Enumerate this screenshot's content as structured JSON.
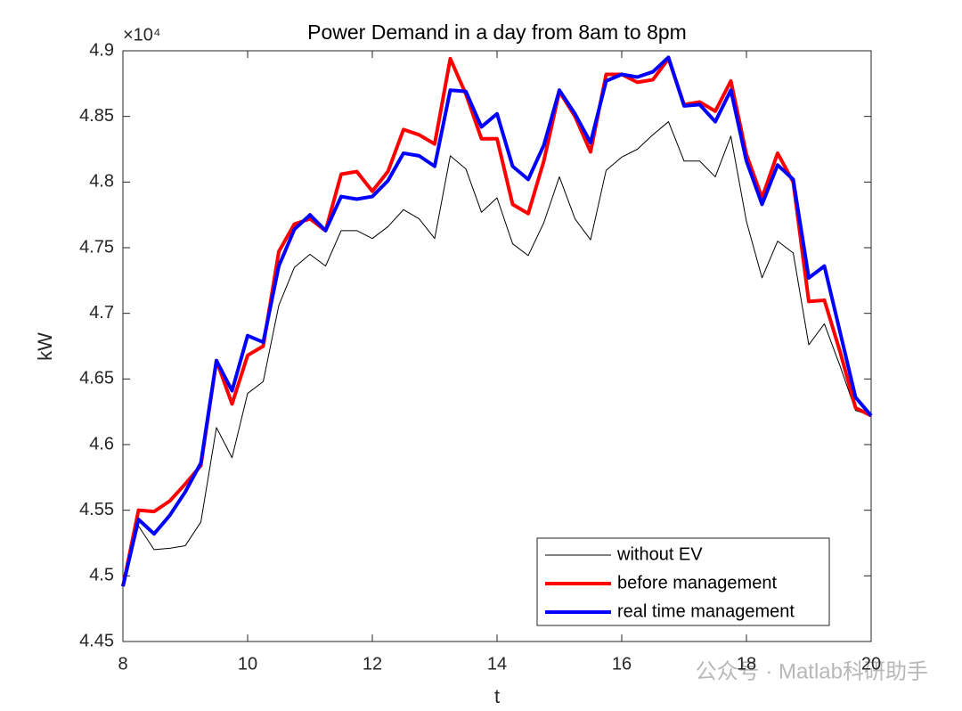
{
  "chart_data": {
    "type": "line",
    "title": "Power Demand in a day from 8am to 8pm",
    "xlabel": "t",
    "ylabel": "kW",
    "y_exponent_label": "×10⁴",
    "watermark": "公众号 · Matlab科研助手",
    "x": [
      8,
      8.25,
      8.5,
      8.75,
      9,
      9.25,
      9.5,
      9.75,
      10,
      10.25,
      10.5,
      10.75,
      11,
      11.25,
      11.5,
      11.75,
      12,
      12.25,
      12.5,
      12.75,
      13,
      13.25,
      13.5,
      13.75,
      14,
      14.25,
      14.5,
      14.75,
      15,
      15.25,
      15.5,
      15.75,
      16,
      16.25,
      16.5,
      16.75,
      17,
      17.25,
      17.5,
      17.75,
      18,
      18.25,
      18.5,
      18.75,
      19,
      19.25,
      19.5,
      19.75,
      20
    ],
    "series": [
      {
        "name": "without EV",
        "color": "#000000",
        "width": 1,
        "values": [
          4.492,
          4.538,
          4.52,
          4.521,
          4.523,
          4.541,
          4.613,
          4.59,
          4.639,
          4.648,
          4.706,
          4.735,
          4.745,
          4.736,
          4.763,
          4.763,
          4.757,
          4.766,
          4.779,
          4.772,
          4.757,
          4.82,
          4.81,
          4.777,
          4.788,
          4.753,
          4.744,
          4.769,
          4.804,
          4.772,
          4.756,
          4.809,
          4.819,
          4.825,
          4.836,
          4.846,
          4.816,
          4.816,
          4.804,
          4.835,
          4.77,
          4.727,
          4.755,
          4.746,
          4.676,
          4.692,
          4.66,
          4.626,
          4.622
        ]
      },
      {
        "name": "before management",
        "color": "#ff0000",
        "width": 4,
        "values": [
          4.492,
          4.55,
          4.549,
          4.557,
          4.57,
          4.584,
          4.664,
          4.631,
          4.668,
          4.675,
          4.747,
          4.768,
          4.772,
          4.763,
          4.806,
          4.808,
          4.793,
          4.808,
          4.84,
          4.836,
          4.829,
          4.894,
          4.867,
          4.833,
          4.833,
          4.783,
          4.776,
          4.816,
          4.869,
          4.85,
          4.823,
          4.882,
          4.882,
          4.876,
          4.878,
          4.894,
          4.859,
          4.861,
          4.854,
          4.877,
          4.821,
          4.788,
          4.822,
          4.8,
          4.709,
          4.71,
          4.671,
          4.628,
          4.622
        ]
      },
      {
        "name": "real time management",
        "color": "#0000ff",
        "width": 4,
        "values": [
          4.492,
          4.543,
          4.532,
          4.546,
          4.564,
          4.586,
          4.664,
          4.641,
          4.683,
          4.678,
          4.736,
          4.764,
          4.775,
          4.763,
          4.789,
          4.787,
          4.789,
          4.801,
          4.822,
          4.82,
          4.812,
          4.87,
          4.869,
          4.842,
          4.852,
          4.812,
          4.802,
          4.828,
          4.87,
          4.852,
          4.83,
          4.877,
          4.882,
          4.88,
          4.884,
          4.895,
          4.858,
          4.859,
          4.846,
          4.87,
          4.816,
          4.783,
          4.813,
          4.802,
          4.727,
          4.736,
          4.686,
          4.636,
          4.622
        ]
      }
    ],
    "xlim": [
      8,
      20
    ],
    "xticks": [
      8,
      10,
      12,
      14,
      16,
      18,
      20
    ],
    "ylim": [
      4.45,
      4.9
    ],
    "yticks": [
      4.45,
      4.5,
      4.55,
      4.6,
      4.65,
      4.7,
      4.75,
      4.8,
      4.85,
      4.9
    ],
    "legend": "lower right"
  }
}
